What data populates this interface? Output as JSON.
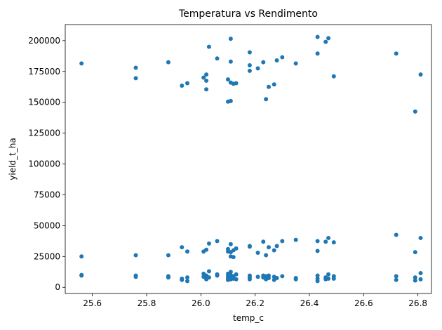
{
  "chart_data": {
    "type": "scatter",
    "title": "Temperatura vs Rendimento",
    "xlabel": "temp_c",
    "ylabel": "yield_t_ha",
    "xlim": [
      25.5,
      26.85
    ],
    "ylim": [
      -5000,
      213000
    ],
    "xticks": [
      25.6,
      25.8,
      26.0,
      26.2,
      26.4,
      26.6,
      26.8
    ],
    "xtick_labels": [
      "25.6",
      "25.8",
      "26.0",
      "26.2",
      "26.4",
      "26.6",
      "26.8"
    ],
    "yticks": [
      0,
      25000,
      50000,
      75000,
      100000,
      125000,
      150000,
      175000,
      200000
    ],
    "ytick_labels": [
      "0",
      "25000",
      "50000",
      "75000",
      "100000",
      "125000",
      "150000",
      "175000",
      "200000"
    ],
    "grid": false,
    "legend": "none",
    "marker_color": "#1f77b4",
    "points": [
      [
        25.56,
        181500
      ],
      [
        25.56,
        25000
      ],
      [
        25.56,
        9500
      ],
      [
        25.56,
        10000
      ],
      [
        25.76,
        178000
      ],
      [
        25.76,
        169500
      ],
      [
        25.76,
        26000
      ],
      [
        25.76,
        9500
      ],
      [
        25.76,
        8500
      ],
      [
        25.88,
        182500
      ],
      [
        25.88,
        26000
      ],
      [
        25.88,
        9000
      ],
      [
        25.88,
        8000
      ],
      [
        25.93,
        163500
      ],
      [
        25.93,
        32500
      ],
      [
        25.93,
        7000
      ],
      [
        25.93,
        6000
      ],
      [
        25.95,
        165500
      ],
      [
        25.95,
        29000
      ],
      [
        25.95,
        8000
      ],
      [
        25.95,
        5000
      ],
      [
        26.01,
        170000
      ],
      [
        26.01,
        29000
      ],
      [
        26.01,
        11000
      ],
      [
        26.01,
        8500
      ],
      [
        26.02,
        172500
      ],
      [
        26.02,
        167500
      ],
      [
        26.02,
        160500
      ],
      [
        26.02,
        30500
      ],
      [
        26.02,
        9500
      ],
      [
        26.02,
        6500
      ],
      [
        26.03,
        195000
      ],
      [
        26.03,
        35500
      ],
      [
        26.03,
        13000
      ],
      [
        26.03,
        8000
      ],
      [
        26.06,
        185500
      ],
      [
        26.06,
        37500
      ],
      [
        26.06,
        10500
      ],
      [
        26.06,
        9500
      ],
      [
        26.1,
        168500
      ],
      [
        26.1,
        150500
      ],
      [
        26.1,
        31000
      ],
      [
        26.1,
        29000
      ],
      [
        26.1,
        11000
      ],
      [
        26.1,
        9000
      ],
      [
        26.1,
        7500
      ],
      [
        26.1,
        6000
      ],
      [
        26.11,
        201500
      ],
      [
        26.11,
        183000
      ],
      [
        26.11,
        166000
      ],
      [
        26.11,
        151000
      ],
      [
        26.11,
        35000
      ],
      [
        26.11,
        28500
      ],
      [
        26.11,
        25000
      ],
      [
        26.11,
        12500
      ],
      [
        26.11,
        10000
      ],
      [
        26.11,
        8000
      ],
      [
        26.11,
        6500
      ],
      [
        26.12,
        165000
      ],
      [
        26.12,
        30000
      ],
      [
        26.12,
        24500
      ],
      [
        26.12,
        9000
      ],
      [
        26.12,
        7000
      ],
      [
        26.13,
        165500
      ],
      [
        26.13,
        31500
      ],
      [
        26.13,
        10500
      ],
      [
        26.13,
        6500
      ],
      [
        26.18,
        190500
      ],
      [
        26.18,
        180000
      ],
      [
        26.18,
        175500
      ],
      [
        26.18,
        33500
      ],
      [
        26.18,
        33000
      ],
      [
        26.18,
        9500
      ],
      [
        26.18,
        8000
      ],
      [
        26.18,
        6500
      ],
      [
        26.21,
        177500
      ],
      [
        26.21,
        28000
      ],
      [
        26.21,
        8500
      ],
      [
        26.23,
        182500
      ],
      [
        26.23,
        37000
      ],
      [
        26.23,
        9500
      ],
      [
        26.23,
        8000
      ],
      [
        26.24,
        152500
      ],
      [
        26.24,
        26000
      ],
      [
        26.24,
        9000
      ],
      [
        26.24,
        6500
      ],
      [
        26.25,
        162500
      ],
      [
        26.25,
        32500
      ],
      [
        26.25,
        9500
      ],
      [
        26.25,
        7500
      ],
      [
        26.27,
        164500
      ],
      [
        26.27,
        30000
      ],
      [
        26.27,
        8500
      ],
      [
        26.27,
        6000
      ],
      [
        26.28,
        184000
      ],
      [
        26.28,
        33500
      ],
      [
        26.28,
        7500
      ],
      [
        26.3,
        186500
      ],
      [
        26.3,
        37500
      ],
      [
        26.3,
        9000
      ],
      [
        26.35,
        181500
      ],
      [
        26.35,
        38500
      ],
      [
        26.35,
        7500
      ],
      [
        26.35,
        6500
      ],
      [
        26.43,
        203000
      ],
      [
        26.43,
        189500
      ],
      [
        26.43,
        37500
      ],
      [
        26.43,
        29500
      ],
      [
        26.43,
        9500
      ],
      [
        26.43,
        7000
      ],
      [
        26.43,
        5000
      ],
      [
        26.46,
        199000
      ],
      [
        26.46,
        37000
      ],
      [
        26.46,
        8000
      ],
      [
        26.46,
        6500
      ],
      [
        26.47,
        202000
      ],
      [
        26.47,
        40000
      ],
      [
        26.47,
        10500
      ],
      [
        26.47,
        7000
      ],
      [
        26.49,
        171000
      ],
      [
        26.49,
        36500
      ],
      [
        26.49,
        9000
      ],
      [
        26.49,
        7000
      ],
      [
        26.72,
        189500
      ],
      [
        26.72,
        42500
      ],
      [
        26.72,
        9000
      ],
      [
        26.72,
        6000
      ],
      [
        26.79,
        142500
      ],
      [
        26.79,
        28500
      ],
      [
        26.79,
        8000
      ],
      [
        26.79,
        5500
      ],
      [
        26.81,
        172500
      ],
      [
        26.81,
        40000
      ],
      [
        26.81,
        11500
      ],
      [
        26.81,
        6500
      ]
    ]
  }
}
